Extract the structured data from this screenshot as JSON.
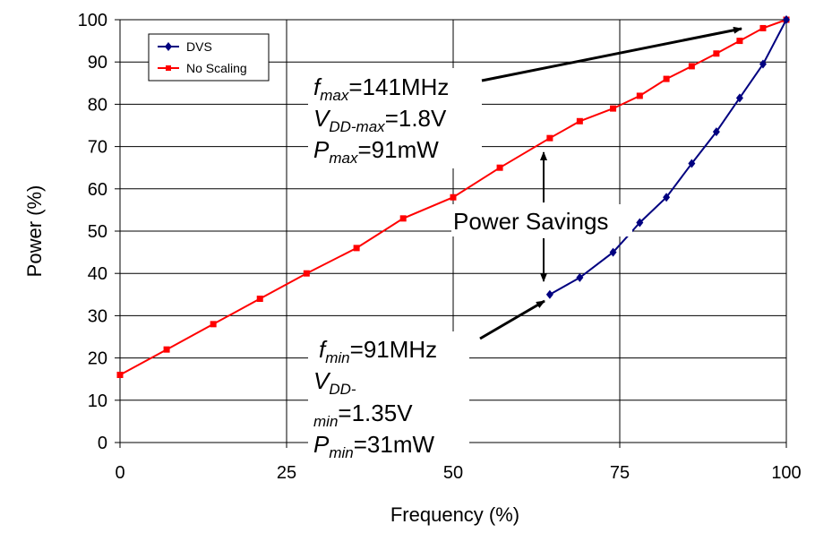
{
  "chart_data": {
    "type": "line",
    "xlabel": "Frequency (%)",
    "ylabel": "Power (%)",
    "xlim": [
      0,
      100
    ],
    "ylim": [
      0,
      100
    ],
    "x_ticks": [
      "0",
      "25",
      "50",
      "75",
      "100"
    ],
    "y_ticks": [
      "0",
      "10",
      "20",
      "30",
      "40",
      "50",
      "60",
      "70",
      "80",
      "90",
      "100"
    ],
    "grid": true,
    "legend_position": "top-left",
    "series": [
      {
        "name": "DVS",
        "color": "#000080",
        "marker": "diamond",
        "x": [
          64.5,
          69,
          74,
          78,
          82,
          85.8,
          89.5,
          93,
          96.5,
          100
        ],
        "y": [
          35,
          39,
          45,
          52,
          58,
          66,
          73.5,
          81.5,
          89.5,
          100
        ]
      },
      {
        "name": "No Scaling",
        "color": "#ff0000",
        "marker": "square",
        "x": [
          0,
          7,
          14,
          21,
          28,
          35.5,
          42.5,
          50,
          57,
          64.5,
          69,
          74,
          78,
          82,
          85.8,
          89.5,
          93,
          96.5,
          100
        ],
        "y": [
          16,
          22,
          28,
          34,
          40,
          46,
          53,
          58,
          65,
          72,
          76,
          79,
          82,
          86,
          89,
          92,
          95,
          98,
          100
        ]
      }
    ],
    "annotations": {
      "max": {
        "f_prefix": "f",
        "f_sub": "max",
        "f_val": "=141MHz",
        "v_prefix": "V",
        "v_sub": "DD-max",
        "v_val": "=1.8V",
        "p_prefix": "P",
        "p_sub": "max",
        "p_val": "=91mW"
      },
      "savings": "Power Savings",
      "min": {
        "f_prefix": "f",
        "f_sub": "min",
        "f_val": "=91MHz",
        "v_prefix": "V",
        "v_sub": "DD-",
        "v2_sub": "min",
        "v_val": "=1.35V",
        "p_prefix": "P",
        "p_sub": "min",
        "p_val": "=31mW"
      }
    }
  }
}
